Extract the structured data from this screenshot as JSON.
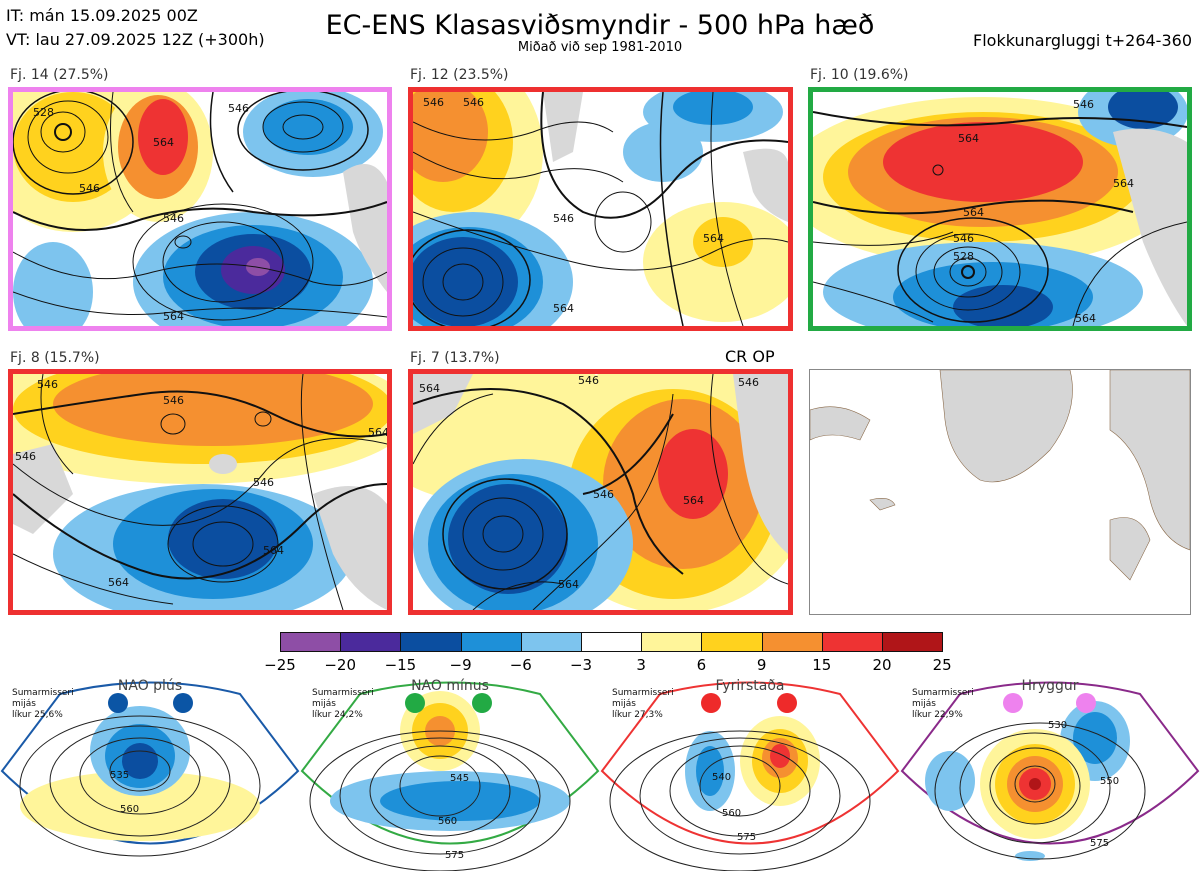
{
  "header": {
    "it_line": "IT: mán 15.09.2025 00Z",
    "vt_line": "VT: lau 27.09.2025 12Z  (+300h)",
    "title": "EC-ENS Klasasviðsmyndir - 500 hPa hæð",
    "subtitle": "Miðað við sep 1981-2010",
    "window": "Flokkunargluggi t+264-360"
  },
  "clusters": [
    {
      "label": "Fj. 14 (27.5%)",
      "border_color": "#ee82ee",
      "contours": [
        "528",
        "546",
        "546",
        "564",
        "564",
        "546"
      ]
    },
    {
      "label": "Fj. 12 (23.5%)",
      "border_color": "#ee3030",
      "contours": [
        "546",
        "546",
        "546",
        "564",
        "564"
      ]
    },
    {
      "label": "Fj. 10 (19.6%)",
      "border_color": "#22aa44",
      "contours": [
        "546",
        "564",
        "564",
        "564",
        "546",
        "528",
        "564"
      ]
    },
    {
      "label": "Fj. 8 (15.7%)",
      "border_color": "#ee3030",
      "contours": [
        "546",
        "546",
        "564",
        "546",
        "546",
        "564",
        "564"
      ]
    },
    {
      "label": "Fj. 7 (13.7%)",
      "border_color": "#ee3030",
      "contours": [
        "564",
        "546",
        "546",
        "546",
        "564",
        "564"
      ]
    }
  ],
  "op_label": "CR OP",
  "colorbar": {
    "colors": [
      "#8e4ea6",
      "#4b2a9c",
      "#0b4ea0",
      "#1e90d8",
      "#7dc4ee",
      "#ffffff",
      "#fff59a",
      "#ffd21e",
      "#f59030",
      "#ee3333",
      "#b01518"
    ],
    "ticks": [
      "−25",
      "−20",
      "−15",
      "−9",
      "−6",
      "−3",
      "3",
      "6",
      "9",
      "15",
      "20",
      "25"
    ]
  },
  "regimes": [
    {
      "name": "NAO plús",
      "season": "Sumarmisseri",
      "kind": "mijás",
      "prob": "líkur 25,6%",
      "dot_color": "#0b55a5",
      "frame_color": "#1a5aa8",
      "contours": [
        "535",
        "560"
      ]
    },
    {
      "name": "NAO mínus",
      "season": "Sumarmisseri",
      "kind": "mijás",
      "prob": "líkur 24,2%",
      "dot_color": "#22aa44",
      "frame_color": "#33aa44",
      "contours": [
        "545",
        "560",
        "575"
      ]
    },
    {
      "name": "Fyrirstaða",
      "season": "Sumarmisseri",
      "kind": "mijás",
      "prob": "líkur 27,3%",
      "dot_color": "#ee2a2a",
      "frame_color": "#ee3333",
      "contours": [
        "540",
        "560",
        "575"
      ]
    },
    {
      "name": "Hryggur",
      "season": "Sumarmisseri",
      "kind": "mijás",
      "prob": "líkur 22,9%",
      "dot_color": "#ee82ee",
      "frame_color": "#8a2a8a",
      "contours": [
        "530",
        "550",
        "575"
      ]
    }
  ]
}
